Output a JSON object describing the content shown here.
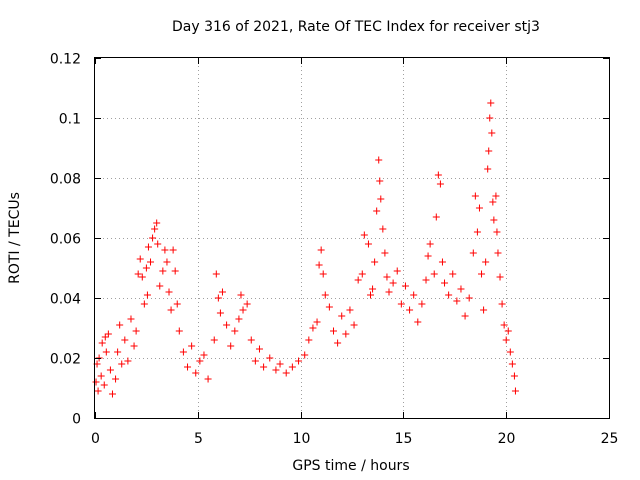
{
  "chart_data": {
    "type": "scatter",
    "title": "Day 316 of 2021, Rate Of TEC Index for receiver stj3",
    "xlabel": "GPS time / hours",
    "ylabel": "ROTI / TECUs",
    "xlim": [
      0,
      25
    ],
    "ylim": [
      0,
      0.12
    ],
    "x_ticks": [
      "0",
      "5",
      "10",
      "15",
      "20",
      "25"
    ],
    "y_ticks": [
      "0",
      "0.02",
      "0.04",
      "0.06",
      "0.08",
      "0.1",
      "0.12"
    ],
    "grid": true,
    "marker": "+",
    "color": "#ff0000",
    "series": [
      {
        "points": [
          [
            0.05,
            0.012
          ],
          [
            0.1,
            0.018
          ],
          [
            0.15,
            0.009
          ],
          [
            0.2,
            0.02
          ],
          [
            0.3,
            0.014
          ],
          [
            0.35,
            0.025
          ],
          [
            0.45,
            0.011
          ],
          [
            0.5,
            0.027
          ],
          [
            0.55,
            0.022
          ],
          [
            0.65,
            0.028
          ],
          [
            0.75,
            0.016
          ],
          [
            0.85,
            0.008
          ],
          [
            1.0,
            0.013
          ],
          [
            1.1,
            0.022
          ],
          [
            1.2,
            0.031
          ],
          [
            1.3,
            0.018
          ],
          [
            1.45,
            0.026
          ],
          [
            1.6,
            0.019
          ],
          [
            1.75,
            0.033
          ],
          [
            1.9,
            0.024
          ],
          [
            2.0,
            0.029
          ],
          [
            2.1,
            0.048
          ],
          [
            2.2,
            0.053
          ],
          [
            2.3,
            0.047
          ],
          [
            2.4,
            0.038
          ],
          [
            2.5,
            0.05
          ],
          [
            2.55,
            0.041
          ],
          [
            2.6,
            0.057
          ],
          [
            2.7,
            0.052
          ],
          [
            2.8,
            0.06
          ],
          [
            2.9,
            0.063
          ],
          [
            3.0,
            0.065
          ],
          [
            3.05,
            0.058
          ],
          [
            3.15,
            0.044
          ],
          [
            3.3,
            0.049
          ],
          [
            3.4,
            0.056
          ],
          [
            3.5,
            0.052
          ],
          [
            3.6,
            0.042
          ],
          [
            3.7,
            0.036
          ],
          [
            3.8,
            0.056
          ],
          [
            3.9,
            0.049
          ],
          [
            4.0,
            0.038
          ],
          [
            4.1,
            0.029
          ],
          [
            4.3,
            0.022
          ],
          [
            4.5,
            0.017
          ],
          [
            4.7,
            0.024
          ],
          [
            4.9,
            0.015
          ],
          [
            5.1,
            0.019
          ],
          [
            5.3,
            0.021
          ],
          [
            5.5,
            0.013
          ],
          [
            5.8,
            0.026
          ],
          [
            5.9,
            0.048
          ],
          [
            6.0,
            0.04
          ],
          [
            6.1,
            0.035
          ],
          [
            6.2,
            0.042
          ],
          [
            6.4,
            0.031
          ],
          [
            6.6,
            0.024
          ],
          [
            6.8,
            0.029
          ],
          [
            7.0,
            0.033
          ],
          [
            7.1,
            0.041
          ],
          [
            7.2,
            0.036
          ],
          [
            7.4,
            0.038
          ],
          [
            7.6,
            0.026
          ],
          [
            7.8,
            0.019
          ],
          [
            8.0,
            0.023
          ],
          [
            8.2,
            0.017
          ],
          [
            8.5,
            0.02
          ],
          [
            8.8,
            0.016
          ],
          [
            9.0,
            0.018
          ],
          [
            9.3,
            0.015
          ],
          [
            9.6,
            0.017
          ],
          [
            9.9,
            0.019
          ],
          [
            10.2,
            0.021
          ],
          [
            10.4,
            0.026
          ],
          [
            10.6,
            0.03
          ],
          [
            10.8,
            0.032
          ],
          [
            10.9,
            0.051
          ],
          [
            11.0,
            0.056
          ],
          [
            11.1,
            0.048
          ],
          [
            11.2,
            0.041
          ],
          [
            11.4,
            0.037
          ],
          [
            11.6,
            0.029
          ],
          [
            11.8,
            0.025
          ],
          [
            12.0,
            0.034
          ],
          [
            12.2,
            0.028
          ],
          [
            12.4,
            0.036
          ],
          [
            12.6,
            0.031
          ],
          [
            12.8,
            0.046
          ],
          [
            13.0,
            0.048
          ],
          [
            13.1,
            0.061
          ],
          [
            13.3,
            0.058
          ],
          [
            13.4,
            0.041
          ],
          [
            13.5,
            0.043
          ],
          [
            13.6,
            0.052
          ],
          [
            13.7,
            0.069
          ],
          [
            13.8,
            0.086
          ],
          [
            13.85,
            0.079
          ],
          [
            13.9,
            0.073
          ],
          [
            14.0,
            0.063
          ],
          [
            14.1,
            0.055
          ],
          [
            14.2,
            0.047
          ],
          [
            14.3,
            0.042
          ],
          [
            14.5,
            0.045
          ],
          [
            14.7,
            0.049
          ],
          [
            14.9,
            0.038
          ],
          [
            15.1,
            0.044
          ],
          [
            15.3,
            0.036
          ],
          [
            15.5,
            0.041
          ],
          [
            15.7,
            0.032
          ],
          [
            15.9,
            0.038
          ],
          [
            16.1,
            0.046
          ],
          [
            16.2,
            0.054
          ],
          [
            16.3,
            0.058
          ],
          [
            16.5,
            0.048
          ],
          [
            16.6,
            0.067
          ],
          [
            16.7,
            0.081
          ],
          [
            16.8,
            0.078
          ],
          [
            16.9,
            0.052
          ],
          [
            17.0,
            0.045
          ],
          [
            17.2,
            0.041
          ],
          [
            17.4,
            0.048
          ],
          [
            17.6,
            0.039
          ],
          [
            17.8,
            0.043
          ],
          [
            18.0,
            0.034
          ],
          [
            18.2,
            0.04
          ],
          [
            18.4,
            0.055
          ],
          [
            18.5,
            0.074
          ],
          [
            18.6,
            0.062
          ],
          [
            18.7,
            0.07
          ],
          [
            18.8,
            0.048
          ],
          [
            18.9,
            0.036
          ],
          [
            19.0,
            0.052
          ],
          [
            19.1,
            0.083
          ],
          [
            19.15,
            0.089
          ],
          [
            19.2,
            0.1
          ],
          [
            19.25,
            0.105
          ],
          [
            19.3,
            0.095
          ],
          [
            19.35,
            0.072
          ],
          [
            19.4,
            0.066
          ],
          [
            19.5,
            0.074
          ],
          [
            19.55,
            0.062
          ],
          [
            19.6,
            0.055
          ],
          [
            19.7,
            0.047
          ],
          [
            19.8,
            0.038
          ],
          [
            19.9,
            0.031
          ],
          [
            20.0,
            0.026
          ],
          [
            20.1,
            0.029
          ],
          [
            20.2,
            0.022
          ],
          [
            20.3,
            0.018
          ],
          [
            20.4,
            0.014
          ],
          [
            20.45,
            0.009
          ]
        ]
      }
    ]
  }
}
